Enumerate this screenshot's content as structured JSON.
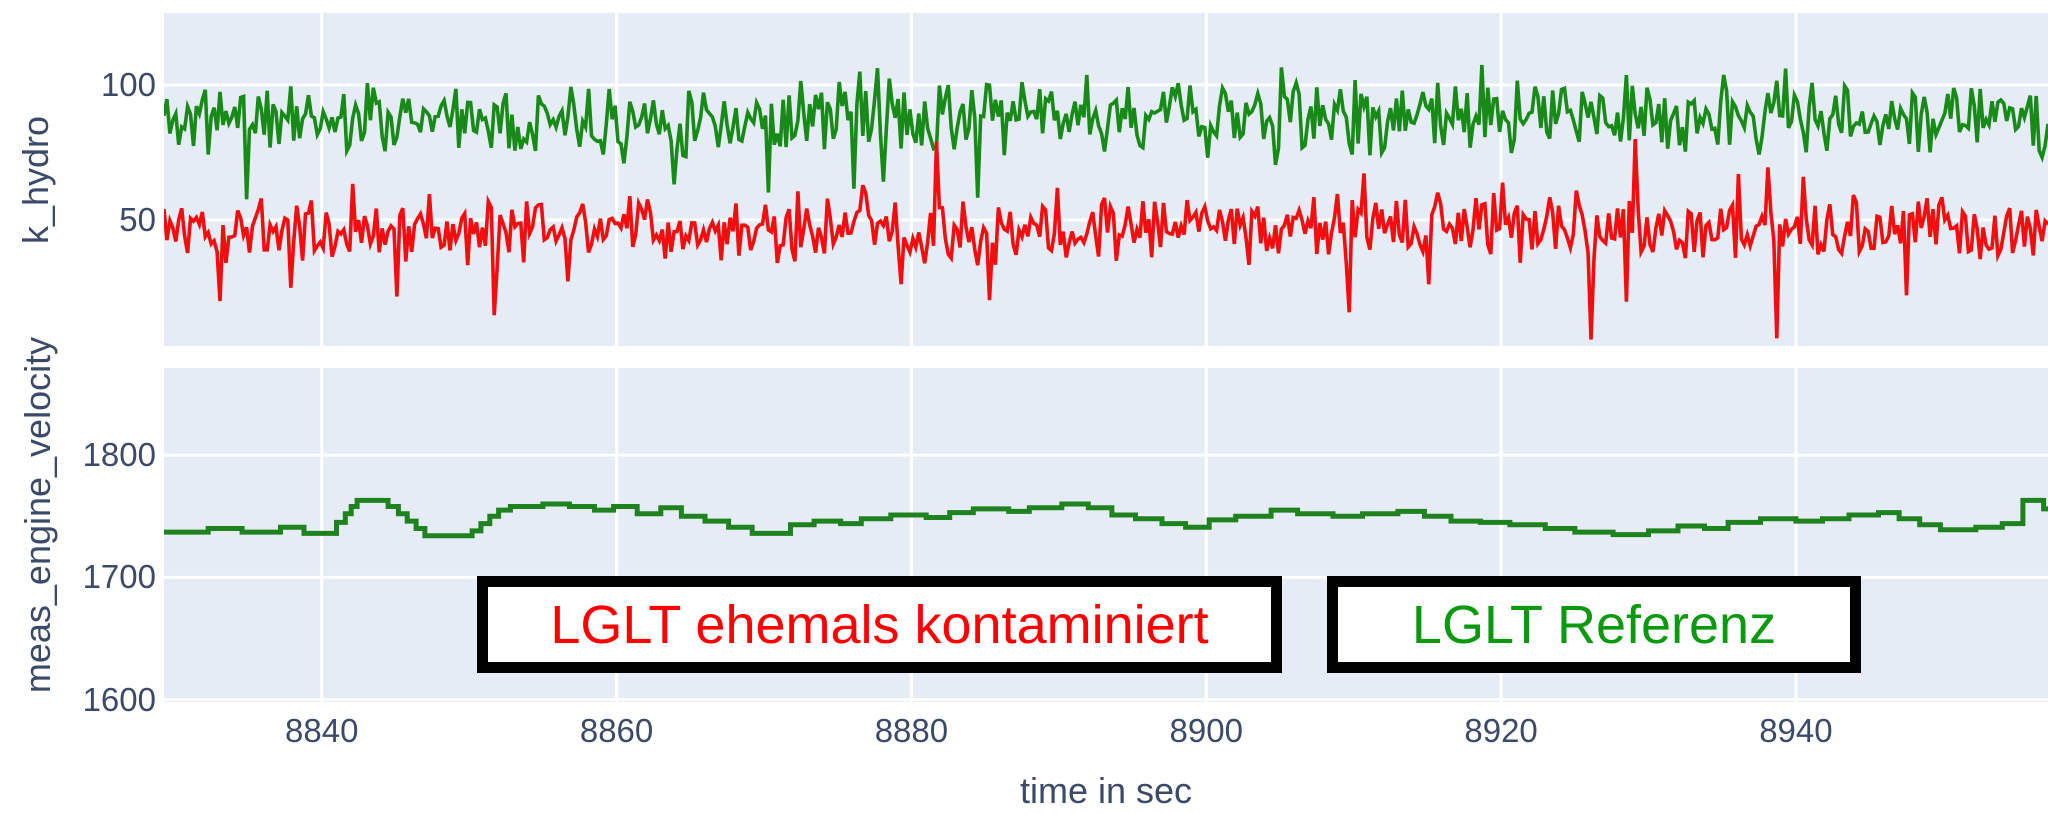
{
  "figure": {
    "plot_bgcolor": "#e6ecf6",
    "grid_color": "#ffffff",
    "text_color": "#3b4a68",
    "xaxis_title": "time in sec"
  },
  "chart_data": {
    "type": "line",
    "xlabel": "time in sec",
    "x_range": [
      8829.3,
      8957.1
    ],
    "x_ticks": [
      8840,
      8860,
      8880,
      8900,
      8920,
      8940
    ],
    "grid": true,
    "legend_position": "inside-bottom",
    "subplots": [
      {
        "ylabel": "k_hydro",
        "y_range": [
          3.3,
          126.7
        ],
        "y_ticks": [
          50,
          100
        ]
      },
      {
        "ylabel": "meas_engine_velocity",
        "y_range": [
          1598,
          1871.3
        ],
        "y_ticks": [
          1600,
          1700,
          1800
        ]
      }
    ],
    "series": [
      {
        "name": "LGLT Referenz",
        "signal": "k_hydro",
        "subplot": 0,
        "color": "#188a18",
        "stroke_width": 3.6,
        "style": "noisy",
        "n": 640,
        "mean": 88,
        "amplitude": 9,
        "min": 57,
        "max": 109,
        "dip_probability": 0.012,
        "dip_magnitude": 26,
        "spike_probability": 0.02,
        "spike_magnitude": 17,
        "seed": 11
      },
      {
        "name": "LGLT ehemals kontaminiert",
        "signal": "k_hydro",
        "subplot": 0,
        "color": "#f20e0e",
        "stroke_width": 3.6,
        "style": "noisy",
        "n": 640,
        "mean": 47,
        "amplitude": 9,
        "min": 5,
        "max": 84,
        "dip_probability": 0.02,
        "dip_magnitude": 34,
        "spike_probability": 0.022,
        "spike_magnitude": 27,
        "seed": 5
      },
      {
        "name": "LGLT Referenz",
        "signal": "meas_engine_velocity",
        "subplot": 1,
        "color": "#1e821e",
        "stroke_width": 5,
        "style": "steps",
        "points": [
          [
            8829.3,
            1737
          ],
          [
            8831.5,
            1737
          ],
          [
            8832.3,
            1740
          ],
          [
            8834,
            1740
          ],
          [
            8834.6,
            1737
          ],
          [
            8836.5,
            1737
          ],
          [
            8837.2,
            1741
          ],
          [
            8838.2,
            1741
          ],
          [
            8838.8,
            1736
          ],
          [
            8840.5,
            1736
          ],
          [
            8841,
            1745
          ],
          [
            8841.6,
            1752
          ],
          [
            8842,
            1758
          ],
          [
            8842.4,
            1763
          ],
          [
            8844,
            1763
          ],
          [
            8844.5,
            1758
          ],
          [
            8845.2,
            1752
          ],
          [
            8845.8,
            1746
          ],
          [
            8846.4,
            1740
          ],
          [
            8847,
            1734
          ],
          [
            8849.5,
            1734
          ],
          [
            8850.2,
            1738
          ],
          [
            8850.8,
            1744
          ],
          [
            8851.4,
            1750
          ],
          [
            8852,
            1755
          ],
          [
            8852.8,
            1758
          ],
          [
            8854.5,
            1758
          ],
          [
            8855,
            1760
          ],
          [
            8856.2,
            1760
          ],
          [
            8856.8,
            1758
          ],
          [
            8858,
            1758
          ],
          [
            8858.5,
            1755
          ],
          [
            8859.2,
            1755
          ],
          [
            8859.8,
            1758
          ],
          [
            8860.8,
            1758
          ],
          [
            8861.4,
            1752
          ],
          [
            8862.4,
            1752
          ],
          [
            8863,
            1757
          ],
          [
            8863.8,
            1757
          ],
          [
            8864.4,
            1750
          ],
          [
            8865.4,
            1750
          ],
          [
            8866,
            1746
          ],
          [
            8867,
            1746
          ],
          [
            8867.6,
            1741
          ],
          [
            8868.6,
            1741
          ],
          [
            8869.2,
            1736
          ],
          [
            8871.2,
            1736
          ],
          [
            8871.8,
            1743
          ],
          [
            8872.8,
            1743
          ],
          [
            8873.4,
            1746
          ],
          [
            8874.6,
            1746
          ],
          [
            8875.2,
            1744
          ],
          [
            8876,
            1744
          ],
          [
            8876.6,
            1748
          ],
          [
            8878,
            1748
          ],
          [
            8878.6,
            1751
          ],
          [
            8880.4,
            1751
          ],
          [
            8881,
            1749
          ],
          [
            8882,
            1749
          ],
          [
            8882.6,
            1753
          ],
          [
            8883.6,
            1753
          ],
          [
            8884.2,
            1756
          ],
          [
            8886,
            1756
          ],
          [
            8886.6,
            1754
          ],
          [
            8887.4,
            1754
          ],
          [
            8888,
            1757
          ],
          [
            8889.6,
            1757
          ],
          [
            8890.2,
            1760
          ],
          [
            8891.4,
            1760
          ],
          [
            8892,
            1757
          ],
          [
            8893,
            1757
          ],
          [
            8893.6,
            1751
          ],
          [
            8894.6,
            1751
          ],
          [
            8895.2,
            1748
          ],
          [
            8896.4,
            1748
          ],
          [
            8897,
            1744
          ],
          [
            8898,
            1744
          ],
          [
            8898.6,
            1741
          ],
          [
            8899.6,
            1741
          ],
          [
            8900.2,
            1747
          ],
          [
            8901.4,
            1747
          ],
          [
            8902,
            1750
          ],
          [
            8903.8,
            1750
          ],
          [
            8904.4,
            1755
          ],
          [
            8905.6,
            1755
          ],
          [
            8906.2,
            1752
          ],
          [
            8908,
            1752
          ],
          [
            8908.6,
            1750
          ],
          [
            8910,
            1750
          ],
          [
            8910.6,
            1752
          ],
          [
            8912.4,
            1752
          ],
          [
            8913,
            1754
          ],
          [
            8914.2,
            1754
          ],
          [
            8914.8,
            1750
          ],
          [
            8916,
            1750
          ],
          [
            8916.6,
            1746
          ],
          [
            8918,
            1746
          ],
          [
            8918.6,
            1745
          ],
          [
            8920,
            1745
          ],
          [
            8920.6,
            1743
          ],
          [
            8922.4,
            1743
          ],
          [
            8923,
            1740
          ],
          [
            8924.4,
            1740
          ],
          [
            8925,
            1737
          ],
          [
            8927,
            1737
          ],
          [
            8927.6,
            1735
          ],
          [
            8929.4,
            1735
          ],
          [
            8930,
            1738
          ],
          [
            8931.4,
            1738
          ],
          [
            8932,
            1742
          ],
          [
            8933.2,
            1742
          ],
          [
            8933.8,
            1740
          ],
          [
            8934.8,
            1740
          ],
          [
            8935.4,
            1745
          ],
          [
            8937,
            1745
          ],
          [
            8937.6,
            1748
          ],
          [
            8939.4,
            1748
          ],
          [
            8940,
            1746
          ],
          [
            8941.2,
            1746
          ],
          [
            8941.8,
            1748
          ],
          [
            8943,
            1748
          ],
          [
            8943.6,
            1751
          ],
          [
            8945,
            1751
          ],
          [
            8945.6,
            1753
          ],
          [
            8946.4,
            1753
          ],
          [
            8947,
            1748
          ],
          [
            8947.8,
            1748
          ],
          [
            8948.4,
            1743
          ],
          [
            8949.2,
            1743
          ],
          [
            8949.8,
            1739
          ],
          [
            8951.6,
            1739
          ],
          [
            8952.2,
            1741
          ],
          [
            8953.4,
            1741
          ],
          [
            8954,
            1744
          ],
          [
            8955,
            1744
          ],
          [
            8955.4,
            1763
          ],
          [
            8956.4,
            1763
          ],
          [
            8956.8,
            1756
          ],
          [
            8957.1,
            1754
          ]
        ]
      }
    ]
  },
  "legend": {
    "items": [
      {
        "label": "LGLT ehemals kontaminiert",
        "color": "#ff0000"
      },
      {
        "label": "LGLT Referenz",
        "color": "#0a990f"
      }
    ]
  }
}
